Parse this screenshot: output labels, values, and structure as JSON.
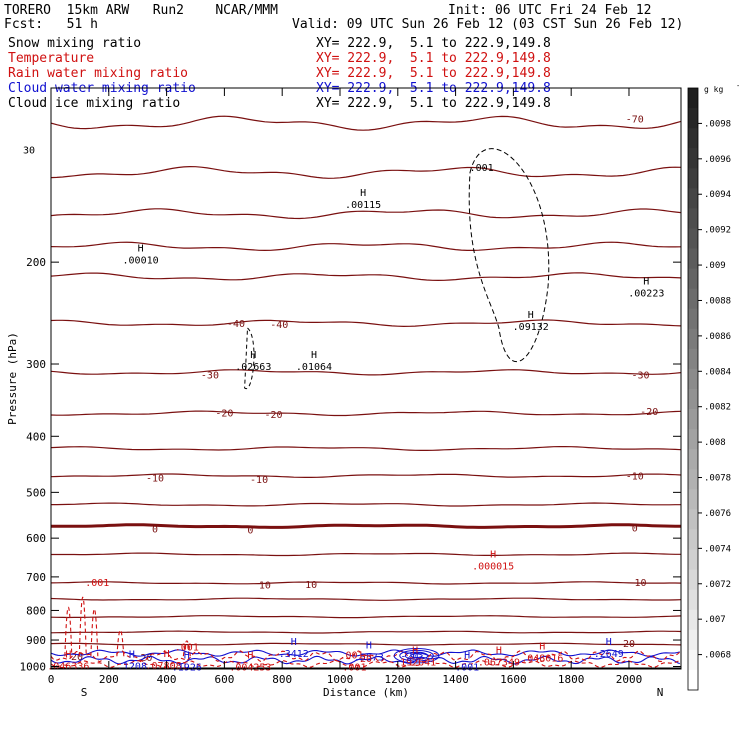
{
  "header": {
    "model": "TORERO  15km ARW   Run2    NCAR/MMM",
    "init": "Init: 06 UTC Fri 24 Feb 12",
    "fcst": "Fcst:   51 h",
    "valid": "Valid: 09 UTC Sun 26 Feb 12 (03 CST Sun 26 Feb 12)"
  },
  "legend": [
    {
      "name": "Snow mixing ratio",
      "xy": "XY= 222.9,  5.1 to 222.9,149.8",
      "color": "#000000"
    },
    {
      "name": "Temperature",
      "xy": "XY= 222.9,  5.1 to 222.9,149.8",
      "color": "#d01010"
    },
    {
      "name": "Rain water mixing ratio",
      "xy": "XY= 222.9,  5.1 to 222.9,149.8",
      "color": "#d01010"
    },
    {
      "name": "Cloud water mixing ratio",
      "xy": "XY= 222.9,  5.1 to 222.9,149.8",
      "color": "#1010d0"
    },
    {
      "name": "Cloud ice mixing ratio",
      "xy": "XY= 222.9,  5.1 to 222.9,149.8",
      "color": "#000000"
    }
  ],
  "chart_data": {
    "type": "cross-section contour",
    "xlabel": "Distance (km)",
    "ylabel": "Pressure (hPa)",
    "xlim": [
      0,
      2180
    ],
    "ylim": [
      1010,
      100
    ],
    "xticks": [
      0,
      200,
      400,
      600,
      800,
      1000,
      1200,
      1400,
      1600,
      1800,
      2000
    ],
    "yticks": [
      200,
      300,
      400,
      500,
      600,
      700,
      800,
      900,
      1000
    ],
    "yticks_raw": [
      "200",
      "300",
      "400",
      "500",
      "600",
      "700",
      "800",
      "900",
      "1000"
    ],
    "xticks_raw": [
      "0",
      "200",
      "400",
      "600",
      "800",
      "1000",
      "1200",
      "1400",
      "1600",
      "1800",
      "2000"
    ],
    "endpoints": {
      "left": "S",
      "right": "N"
    },
    "colorbar": {
      "unit": "g kg",
      "unit_exp": "-1",
      "labels": [
        ".0098",
        ".0096",
        ".0094",
        ".0092",
        ".009",
        ".0088",
        ".0086",
        ".0084",
        ".0082",
        ".008",
        ".0078",
        ".0076",
        ".0074",
        ".0072",
        ".007",
        ".0068"
      ],
      "values": [
        0.0098,
        0.0096,
        0.0094,
        0.0092,
        0.009,
        0.0088,
        0.0086,
        0.0084,
        0.0082,
        0.008,
        0.0078,
        0.0076,
        0.0074,
        0.0072,
        0.007,
        0.0068
      ]
    },
    "temperature_contours": [
      {
        "label": "-70",
        "base_p": 115,
        "labels_at": [
          [
            2020,
            113
          ]
        ]
      },
      {
        "label": "",
        "base_p": 140,
        "labels_at": []
      },
      {
        "label": "",
        "base_p": 165,
        "labels_at": []
      },
      {
        "label": "",
        "base_p": 188,
        "labels_at": []
      },
      {
        "label": "",
        "base_p": 212,
        "labels_at": []
      },
      {
        "label": "-40",
        "base_p": 255,
        "labels_at": [
          [
            640,
            255
          ],
          [
            790,
            256
          ]
        ]
      },
      {
        "label": "-30",
        "base_p": 310,
        "labels_at": [
          [
            550,
            313
          ],
          [
            2040,
            313
          ]
        ]
      },
      {
        "label": "-20",
        "base_p": 365,
        "labels_at": [
          [
            600,
            364
          ],
          [
            770,
            366
          ],
          [
            2070,
            362
          ]
        ]
      },
      {
        "label": "-10",
        "base_p": 468,
        "labels_at": [
          [
            360,
            471
          ],
          [
            720,
            474
          ],
          [
            2020,
            468
          ]
        ]
      },
      {
        "label": "0",
        "base_p": 572,
        "labels_at": [
          [
            360,
            577
          ],
          [
            690,
            580
          ],
          [
            2020,
            575
          ]
        ],
        "bold": true
      },
      {
        "label": "10",
        "base_p": 717,
        "labels_at": [
          [
            740,
            722
          ],
          [
            900,
            720
          ],
          [
            2040,
            715
          ]
        ]
      },
      {
        "label": "20",
        "base_p": 915,
        "labels_at": [
          [
            2000,
            910
          ],
          [
            90,
            960
          ],
          [
            330,
            962
          ]
        ]
      },
      {
        "label": "",
        "base_p": 765,
        "labels_at": []
      },
      {
        "label": "",
        "base_p": 820,
        "labels_at": []
      },
      {
        "label": "",
        "base_p": 872,
        "labels_at": []
      },
      {
        "label": "",
        "base_p": 640,
        "labels_at": []
      },
      {
        "label": "",
        "base_p": 525,
        "labels_at": []
      },
      {
        "label": "",
        "base_p": 420,
        "labels_at": []
      }
    ],
    "extrema": [
      {
        "x": 310,
        "p": 197,
        "label": ".00010",
        "color": "#000000"
      },
      {
        "x": 1080,
        "p": 158,
        "label": ".00115",
        "color": "#000000"
      },
      {
        "x": 2060,
        "p": 225,
        "label": ".00223",
        "color": "#000000"
      },
      {
        "x": 1660,
        "p": 257,
        "label": ".09132",
        "color": "#000000"
      },
      {
        "x": 700,
        "p": 301,
        "label": ".02663",
        "color": "#000000"
      },
      {
        "x": 910,
        "p": 301,
        "label": ".01064",
        "color": "#000000"
      },
      {
        "x": 1530,
        "p": 666,
        "label": ".000015",
        "color": "#d01010"
      },
      {
        "x": 60,
        "p": 992,
        "label": ".046336",
        "color": "#d01010"
      },
      {
        "x": 280,
        "p": 992,
        "label": ".1208",
        "color": "#1010d0"
      },
      {
        "x": 400,
        "p": 991,
        "label": ".078081",
        "color": "#d01010"
      },
      {
        "x": 470,
        "p": 997,
        "label": ".1926",
        "color": "#1010d0"
      },
      {
        "x": 690,
        "p": 997,
        "label": ".004253",
        "color": "#d01010"
      },
      {
        "x": 840,
        "p": 944,
        "label": ".3412",
        "color": "#1010d0"
      },
      {
        "x": 1100,
        "p": 958,
        "label": ".5573",
        "color": "#1010d0"
      },
      {
        "x": 1260,
        "p": 976,
        "label": ".192641",
        "color": "#d01010"
      },
      {
        "x": 1440,
        "p": 997,
        "label": ".001",
        "color": "#1010d0"
      },
      {
        "x": 1550,
        "p": 976,
        "label": ".067349",
        "color": "#d01010"
      },
      {
        "x": 1700,
        "p": 961,
        "label": ".048016",
        "color": "#d01010"
      },
      {
        "x": 1930,
        "p": 944,
        "label": ".2649",
        "color": "#1010d0"
      }
    ],
    "contour_labels": [
      {
        "x": 160,
        "p": 715,
        "label": ".001",
        "color": "#d01010"
      },
      {
        "x": 470,
        "p": 923,
        "label": ".001",
        "color": "#d01010"
      },
      {
        "x": 1050,
        "p": 1000,
        "label": ".001",
        "color": "#d01010"
      },
      {
        "x": 1490,
        "p": 137,
        "label": ".001",
        "color": "#000000"
      },
      {
        "x": 1040,
        "p": 953,
        "label": ".001",
        "color": "#d01010"
      },
      {
        "x": 1090,
        "p": 966,
        "label": "20",
        "color": "#d01010"
      },
      {
        "x": 1240,
        "p": 958,
        "label": "-20",
        "color": "#1010d0"
      }
    ],
    "annotations": [
      {
        "x": 0,
        "p": 190,
        "label": "30"
      }
    ]
  }
}
